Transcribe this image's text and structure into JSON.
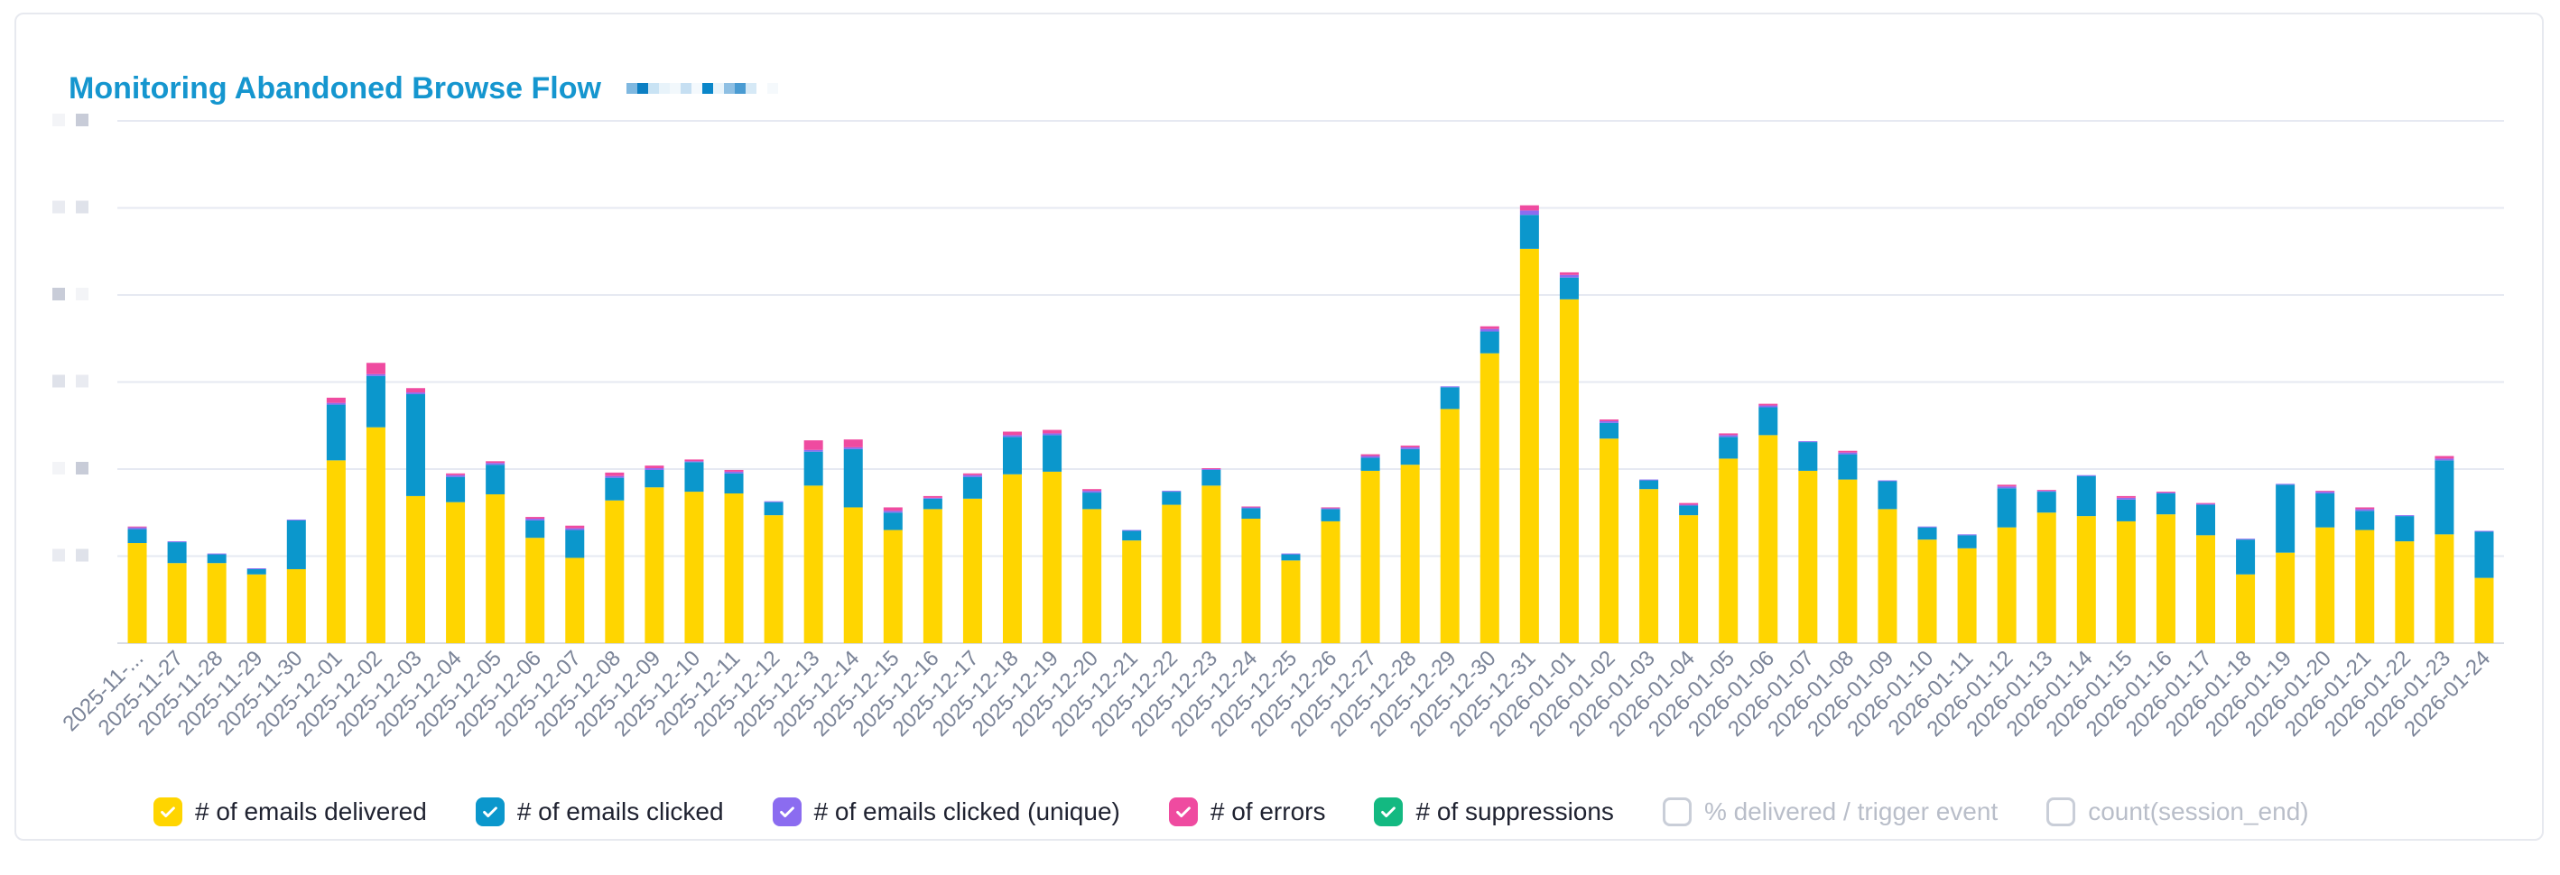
{
  "title": "Monitoring Abandoned Browse Flow",
  "colors": {
    "delivered": "#ffd500",
    "clicked": "#0b97cc",
    "clicked_unique": "#8b6cf0",
    "errors": "#ef4ba0",
    "suppressions": "#13b981",
    "grid": "#e6e9f2",
    "axis": "#d7dbe4",
    "tick": "#7b8498"
  },
  "legend": [
    {
      "label": "# of emails delivered",
      "color": "#ffd500",
      "checked": true
    },
    {
      "label": "# of emails clicked",
      "color": "#0b97cc",
      "checked": true
    },
    {
      "label": "# of emails clicked (unique)",
      "color": "#8b6cf0",
      "checked": true
    },
    {
      "label": "# of errors",
      "color": "#ef4ba0",
      "checked": true
    },
    {
      "label": "# of suppressions",
      "color": "#13b981",
      "checked": true
    },
    {
      "label": "% delivered / trigger event",
      "color": "#c9ced8",
      "checked": false
    },
    {
      "label": "count(session_end)",
      "color": "#c9ced8",
      "checked": false
    }
  ],
  "chart_data": {
    "type": "bar",
    "stacked": true,
    "title": "Monitoring Abandoned Browse Flow",
    "ylim": [
      0,
      6
    ],
    "y_ticks_hidden": true,
    "grid": true,
    "categories": [
      "2025-11-...",
      "2025-11-27",
      "2025-11-28",
      "2025-11-29",
      "2025-11-30",
      "2025-12-01",
      "2025-12-02",
      "2025-12-03",
      "2025-12-04",
      "2025-12-05",
      "2025-12-06",
      "2025-12-07",
      "2025-12-08",
      "2025-12-09",
      "2025-12-10",
      "2025-12-11",
      "2025-12-12",
      "2025-12-13",
      "2025-12-14",
      "2025-12-15",
      "2025-12-16",
      "2025-12-17",
      "2025-12-18",
      "2025-12-19",
      "2025-12-20",
      "2025-12-21",
      "2025-12-22",
      "2025-12-23",
      "2025-12-24",
      "2025-12-25",
      "2025-12-26",
      "2025-12-27",
      "2025-12-28",
      "2025-12-29",
      "2025-12-30",
      "2025-12-31",
      "2026-01-01",
      "2026-01-02",
      "2026-01-03",
      "2026-01-04",
      "2026-01-05",
      "2026-01-06",
      "2026-01-07",
      "2026-01-08",
      "2026-01-09",
      "2026-01-10",
      "2026-01-11",
      "2026-01-12",
      "2026-01-13",
      "2026-01-14",
      "2026-01-15",
      "2026-01-16",
      "2026-01-17",
      "2026-01-18",
      "2026-01-19",
      "2026-01-20",
      "2026-01-21",
      "2026-01-22",
      "2026-01-23",
      "2026-01-24"
    ],
    "series": [
      {
        "name": "# of emails delivered",
        "color": "#ffd500",
        "values": [
          1.15,
          0.92,
          0.92,
          0.79,
          0.85,
          2.1,
          2.48,
          1.69,
          1.62,
          1.71,
          1.21,
          0.98,
          1.64,
          1.79,
          1.74,
          1.72,
          1.47,
          1.81,
          1.56,
          1.3,
          1.54,
          1.66,
          1.94,
          1.97,
          1.54,
          1.18,
          1.59,
          1.81,
          1.43,
          0.95,
          1.4,
          1.98,
          2.05,
          2.69,
          3.33,
          4.53,
          3.95,
          2.35,
          1.77,
          1.47,
          2.12,
          2.39,
          1.98,
          1.88,
          1.54,
          1.19,
          1.09,
          1.33,
          1.5,
          1.46,
          1.4,
          1.48,
          1.24,
          0.79,
          1.04,
          1.33,
          1.3,
          1.17,
          1.25,
          0.75
        ]
      },
      {
        "name": "# of emails clicked",
        "color": "#0b97cc",
        "values": [
          0.16,
          0.24,
          0.1,
          0.06,
          0.56,
          0.64,
          0.59,
          1.17,
          0.29,
          0.34,
          0.2,
          0.32,
          0.26,
          0.2,
          0.34,
          0.23,
          0.15,
          0.39,
          0.67,
          0.2,
          0.12,
          0.25,
          0.43,
          0.42,
          0.19,
          0.11,
          0.15,
          0.18,
          0.12,
          0.07,
          0.14,
          0.15,
          0.18,
          0.25,
          0.25,
          0.39,
          0.25,
          0.18,
          0.1,
          0.11,
          0.25,
          0.32,
          0.33,
          0.29,
          0.32,
          0.14,
          0.15,
          0.45,
          0.24,
          0.46,
          0.25,
          0.24,
          0.35,
          0.4,
          0.78,
          0.39,
          0.22,
          0.29,
          0.85,
          0.53
        ]
      },
      {
        "name": "# of emails clicked (unique)",
        "color": "#8b6cf0",
        "values": [
          0.02,
          0.01,
          0.01,
          0.01,
          0.01,
          0.02,
          0.02,
          0.02,
          0.02,
          0.02,
          0.02,
          0.02,
          0.02,
          0.02,
          0.01,
          0.02,
          0.01,
          0.02,
          0.02,
          0.02,
          0.01,
          0.02,
          0.02,
          0.02,
          0.02,
          0.01,
          0.01,
          0.01,
          0.01,
          0.01,
          0.01,
          0.02,
          0.02,
          0.01,
          0.03,
          0.05,
          0.03,
          0.02,
          0.01,
          0.01,
          0.02,
          0.02,
          0.01,
          0.02,
          0.01,
          0.01,
          0.01,
          0.02,
          0.01,
          0.01,
          0.02,
          0.01,
          0.01,
          0.01,
          0.01,
          0.02,
          0.02,
          0.01,
          0.02,
          0.01
        ]
      },
      {
        "name": "# of errors",
        "color": "#ef4ba0",
        "values": [
          0.01,
          0.0,
          0.0,
          0.0,
          0.0,
          0.06,
          0.13,
          0.05,
          0.02,
          0.02,
          0.02,
          0.03,
          0.04,
          0.03,
          0.02,
          0.02,
          0.0,
          0.11,
          0.09,
          0.04,
          0.02,
          0.02,
          0.04,
          0.04,
          0.02,
          0.0,
          0.0,
          0.01,
          0.01,
          0.0,
          0.01,
          0.02,
          0.02,
          0.0,
          0.03,
          0.06,
          0.03,
          0.02,
          0.0,
          0.02,
          0.02,
          0.02,
          0.0,
          0.02,
          0.0,
          0.0,
          0.0,
          0.02,
          0.01,
          0.0,
          0.02,
          0.01,
          0.01,
          0.0,
          0.0,
          0.01,
          0.02,
          0.0,
          0.03,
          0.0
        ]
      },
      {
        "name": "# of suppressions",
        "color": "#13b981",
        "values": [
          0,
          0,
          0,
          0,
          0,
          0,
          0,
          0,
          0,
          0,
          0,
          0,
          0,
          0,
          0,
          0,
          0,
          0,
          0,
          0,
          0,
          0,
          0,
          0,
          0,
          0,
          0,
          0,
          0,
          0,
          0,
          0,
          0,
          0,
          0,
          0,
          0,
          0,
          0,
          0,
          0,
          0,
          0,
          0,
          0,
          0,
          0,
          0,
          0,
          0,
          0,
          0,
          0,
          0,
          0,
          0,
          0,
          0,
          0,
          0
        ]
      }
    ]
  }
}
